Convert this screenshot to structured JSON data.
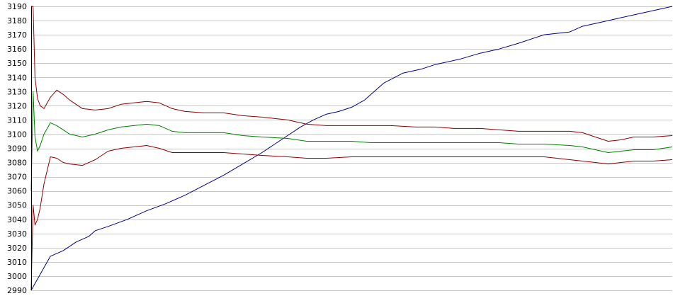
{
  "chart_data": {
    "type": "line",
    "title": "",
    "xlabel": "",
    "ylabel": "",
    "grid": true,
    "legend": "none",
    "ylim": [
      2990,
      3190
    ],
    "xlim": [
      0,
      100
    ],
    "y_ticks": [
      "2990",
      "3000",
      "3010",
      "3020",
      "3030",
      "3040",
      "3050",
      "3060",
      "3070",
      "3080",
      "3090",
      "3100",
      "3110",
      "3120",
      "3130",
      "3140",
      "3150",
      "3160",
      "3170",
      "3180",
      "3190"
    ],
    "series": [
      {
        "color": "#00008b",
        "x": [
          0,
          0.5,
          1,
          2,
          3,
          5,
          7,
          9,
          10,
          12,
          15,
          18,
          21,
          24,
          27,
          30,
          33,
          36,
          39,
          42,
          44,
          46,
          48,
          50,
          52,
          55,
          58,
          61,
          63,
          65,
          67,
          70,
          73,
          76,
          80,
          84,
          86,
          88,
          90,
          91,
          94,
          97,
          100
        ],
        "y": [
          2990,
          2994,
          2998,
          3006,
          3014,
          3018,
          3024,
          3028,
          3032,
          3035,
          3040,
          3046,
          3051,
          3057,
          3064,
          3071,
          3079,
          3087,
          3096,
          3105,
          3110,
          3114,
          3116,
          3119,
          3124,
          3136,
          3143,
          3146,
          3149,
          3151,
          3153,
          3157,
          3160,
          3164,
          3170,
          3172,
          3176,
          3178,
          3180,
          3181,
          3184,
          3187,
          3190
        ]
      },
      {
        "color": "#8b0000",
        "x": [
          0,
          0.3,
          0.6,
          1,
          1.4,
          2,
          3,
          4,
          5,
          6,
          8,
          10,
          12,
          14,
          16,
          18,
          20,
          22,
          24,
          27,
          30,
          33,
          36,
          40,
          43,
          46,
          50,
          53,
          56,
          60,
          63,
          66,
          70,
          73,
          76,
          80,
          84,
          86,
          88,
          90,
          92,
          94,
          97,
          100
        ],
        "y": [
          3190,
          3190,
          3140,
          3125,
          3120,
          3118,
          3126,
          3131,
          3128,
          3124,
          3118,
          3117,
          3118,
          3121,
          3122,
          3123,
          3122,
          3118,
          3116,
          3115,
          3115,
          3113,
          3112,
          3110,
          3107,
          3106,
          3106,
          3106,
          3106,
          3105,
          3105,
          3104,
          3104,
          3103,
          3102,
          3102,
          3102,
          3101,
          3098,
          3095,
          3096,
          3098,
          3098,
          3099
        ]
      },
      {
        "color": "#008000",
        "x": [
          0,
          0.3,
          0.6,
          1,
          1.4,
          2,
          3,
          4,
          5,
          6,
          8,
          10,
          12,
          14,
          16,
          18,
          20,
          22,
          24,
          27,
          30,
          33,
          36,
          40,
          43,
          46,
          50,
          53,
          56,
          60,
          63,
          66,
          70,
          73,
          76,
          80,
          84,
          86,
          88,
          90,
          92,
          94,
          97,
          100
        ],
        "y": [
          3060,
          3130,
          3098,
          3088,
          3092,
          3100,
          3108,
          3106,
          3103,
          3100,
          3098,
          3100,
          3103,
          3105,
          3106,
          3107,
          3106,
          3102,
          3101,
          3101,
          3101,
          3099,
          3098,
          3097,
          3095,
          3095,
          3095,
          3094,
          3094,
          3094,
          3094,
          3094,
          3094,
          3094,
          3093,
          3093,
          3092,
          3091,
          3089,
          3087,
          3088,
          3089,
          3089,
          3091
        ]
      },
      {
        "color": "#8b0000",
        "x": [
          0,
          0.3,
          0.6,
          1,
          1.4,
          2,
          3,
          4,
          5,
          6,
          8,
          10,
          12,
          14,
          16,
          18,
          20,
          22,
          24,
          27,
          30,
          33,
          36,
          40,
          43,
          46,
          50,
          53,
          56,
          60,
          63,
          66,
          70,
          73,
          76,
          80,
          84,
          86,
          88,
          90,
          92,
          94,
          97,
          100
        ],
        "y": [
          2990,
          3050,
          3036,
          3040,
          3048,
          3065,
          3084,
          3083,
          3080,
          3079,
          3078,
          3082,
          3088,
          3090,
          3091,
          3092,
          3090,
          3087,
          3087,
          3087,
          3087,
          3086,
          3085,
          3084,
          3083,
          3083,
          3084,
          3084,
          3084,
          3084,
          3084,
          3084,
          3084,
          3084,
          3084,
          3084,
          3082,
          3081,
          3080,
          3079,
          3080,
          3081,
          3081,
          3082
        ]
      }
    ]
  }
}
